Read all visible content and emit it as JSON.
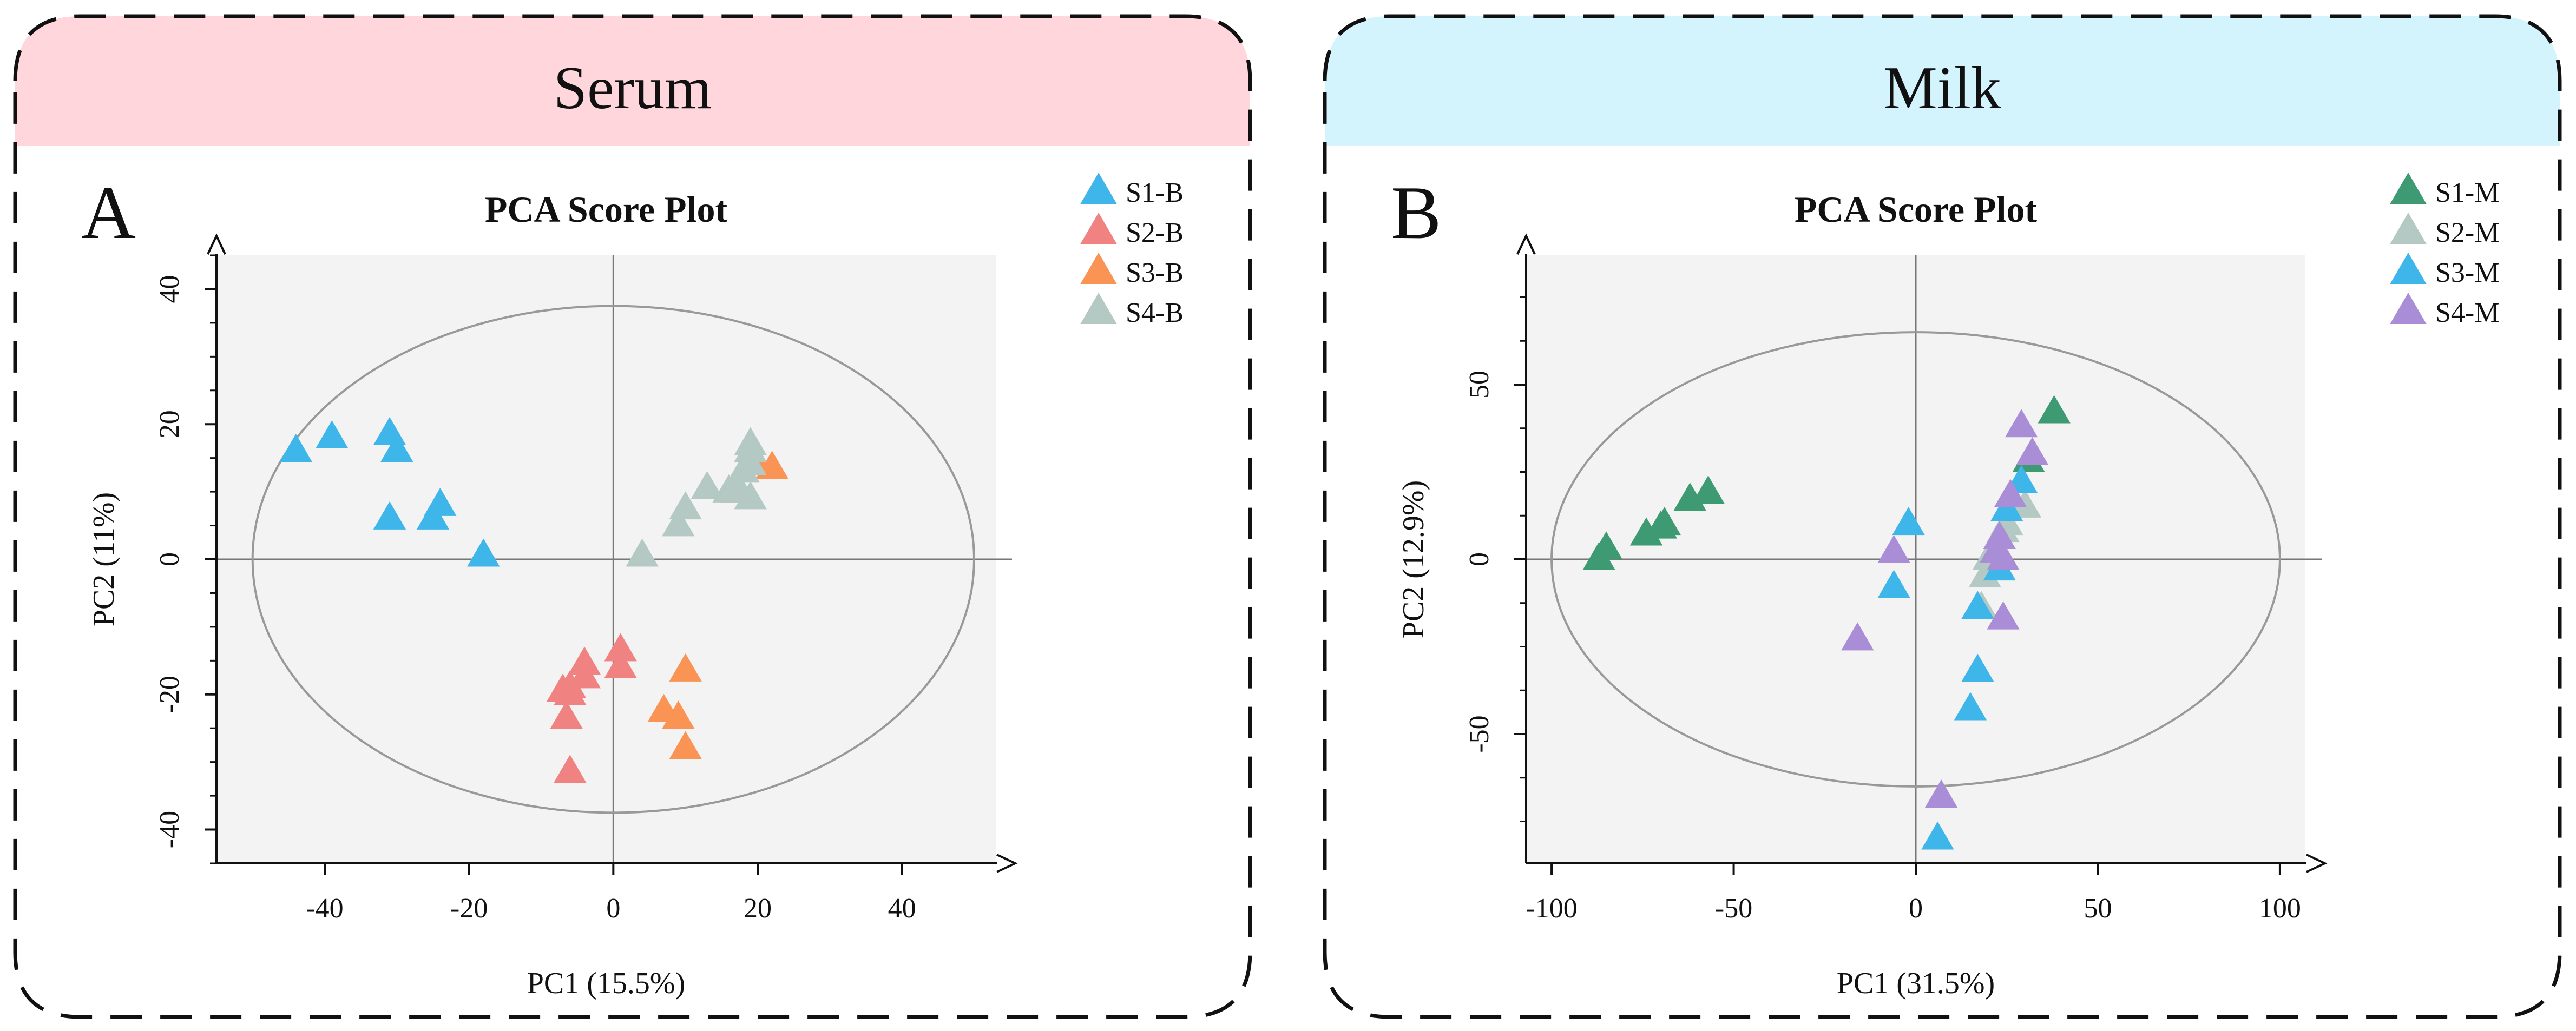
{
  "panels": [
    {
      "id": "serum",
      "header": "Serum",
      "header_color": "#ffd6db",
      "letter": "A"
    },
    {
      "id": "milk",
      "header": "Milk",
      "header_color": "#d3f3fd",
      "letter": "B"
    }
  ],
  "chart_data": [
    {
      "type": "scatter",
      "title": "PCA Score Plot",
      "xlabel": "PC1 (15.5%)",
      "ylabel": "PC2 (11%)",
      "xlim": [
        -55,
        53
      ],
      "ylim": [
        -45,
        45
      ],
      "xticks": [
        -40,
        -20,
        0,
        20,
        40
      ],
      "yticks": [
        -40,
        -20,
        0,
        20,
        40
      ],
      "marker": "triangle",
      "grid": false,
      "legend_position": "top-right",
      "ellipse": {
        "center": [
          0,
          0
        ],
        "rx": 50,
        "ry": 37.5
      },
      "series": [
        {
          "name": "S1-B",
          "color": "#3eb6ea",
          "points": [
            [
              -44,
              16
            ],
            [
              -39,
              18
            ],
            [
              -31,
              18.5
            ],
            [
              -30,
              16
            ],
            [
              -31,
              6
            ],
            [
              -25,
              6
            ],
            [
              -24,
              8
            ],
            [
              -18,
              0.5
            ]
          ]
        },
        {
          "name": "S2-B",
          "color": "#f08382",
          "points": [
            [
              -4,
              -15.5
            ],
            [
              -4,
              -17.5
            ],
            [
              -6,
              -19
            ],
            [
              -7,
              -19.5
            ],
            [
              -6,
              -20
            ],
            [
              -6.5,
              -23.5
            ],
            [
              -6,
              -31.5
            ],
            [
              1,
              -13.5
            ],
            [
              1,
              -16
            ]
          ]
        },
        {
          "name": "S3-B",
          "color": "#f99455",
          "points": [
            [
              10,
              -16.5
            ],
            [
              7,
              -22.5
            ],
            [
              9,
              -23.5
            ],
            [
              10,
              -28
            ],
            [
              17,
              10
            ],
            [
              20,
              14
            ],
            [
              22,
              13.5
            ]
          ]
        },
        {
          "name": "S4-B",
          "color": "#b5c9c4",
          "points": [
            [
              4,
              0.5
            ],
            [
              9,
              5
            ],
            [
              10,
              7.5
            ],
            [
              13,
              10.5
            ],
            [
              16,
              10
            ],
            [
              17,
              11
            ],
            [
              18,
              13
            ],
            [
              19,
              14
            ],
            [
              19,
              16
            ],
            [
              19,
              17
            ],
            [
              19,
              9
            ]
          ]
        }
      ]
    },
    {
      "type": "scatter",
      "title": "PCA Score Plot",
      "xlabel": "PC1 (31.5%)",
      "ylabel": "PC2 (12.9%)",
      "xlim": [
        -107,
        107
      ],
      "ylim": [
        -87,
        87
      ],
      "xticks": [
        -100,
        -50,
        0,
        50,
        100
      ],
      "yticks": [
        -50,
        0,
        50
      ],
      "marker": "triangle",
      "grid": false,
      "legend_position": "top-right",
      "ellipse": {
        "center": [
          0,
          0
        ],
        "rx": 100,
        "ry": 65
      },
      "series": [
        {
          "name": "S1-M",
          "color": "#3e9a72",
          "points": [
            [
              -87,
              0
            ],
            [
              -85,
              3
            ],
            [
              -74,
              7
            ],
            [
              -70,
              9
            ],
            [
              -69,
              10
            ],
            [
              -62,
              17
            ],
            [
              -57,
              19
            ],
            [
              38,
              42
            ],
            [
              31,
              28
            ]
          ]
        },
        {
          "name": "S2-M",
          "color": "#b5c9c4",
          "points": [
            [
              30,
              15
            ],
            [
              25,
              10
            ],
            [
              24,
              8
            ],
            [
              22,
              3
            ],
            [
              20,
              0
            ],
            [
              19,
              -5
            ],
            [
              18,
              -14
            ]
          ]
        },
        {
          "name": "S3-M",
          "color": "#3eb6ea",
          "points": [
            [
              -2,
              10
            ],
            [
              -6,
              -8
            ],
            [
              29,
              22
            ],
            [
              25,
              14
            ],
            [
              23,
              -3
            ],
            [
              17,
              -14
            ],
            [
              17,
              -32
            ],
            [
              15,
              -43
            ],
            [
              6,
              -80
            ]
          ]
        },
        {
          "name": "S4-M",
          "color": "#a98dd6",
          "points": [
            [
              -6,
              2
            ],
            [
              -16,
              -23
            ],
            [
              29,
              38
            ],
            [
              32,
              30
            ],
            [
              26,
              18
            ],
            [
              23,
              6
            ],
            [
              22,
              2
            ],
            [
              24,
              0
            ],
            [
              24,
              -17
            ],
            [
              7,
              -68
            ]
          ]
        }
      ]
    }
  ]
}
